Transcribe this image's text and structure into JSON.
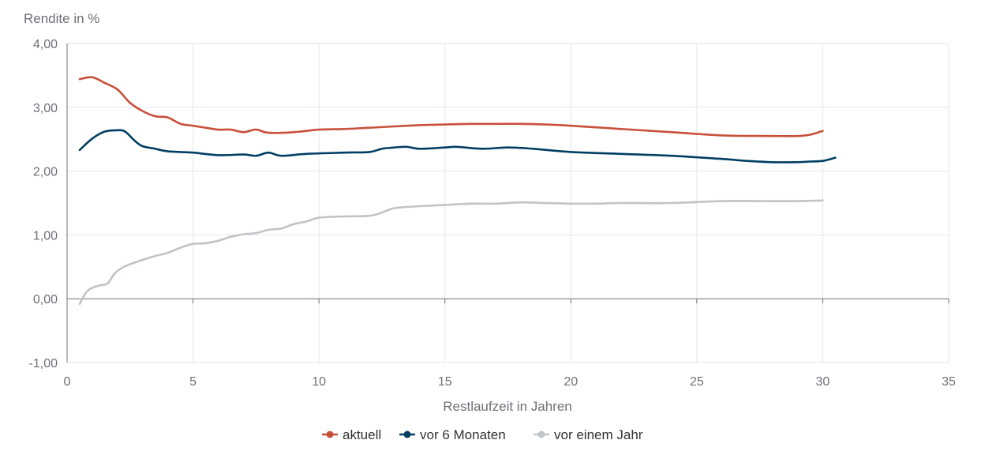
{
  "chart_data": {
    "type": "line",
    "ylabel": "Rendite in  %",
    "xlabel": "Restlaufzeit in Jahren",
    "xlim": [
      0,
      35
    ],
    "ylim": [
      -1,
      4
    ],
    "x_ticks": [
      "0",
      "5",
      "10",
      "15",
      "20",
      "25",
      "30",
      "35"
    ],
    "y_ticks": [
      "-1,00",
      "0,00",
      "1,00",
      "2,00",
      "3,00",
      "4,00"
    ],
    "grid": true,
    "legend_position": "bottom-center",
    "series": [
      {
        "name": "aktuell",
        "color": "#c8503a",
        "points": [
          [
            0.5,
            3.44
          ],
          [
            1.0,
            3.47
          ],
          [
            1.5,
            3.38
          ],
          [
            2.0,
            3.28
          ],
          [
            2.5,
            3.07
          ],
          [
            3.0,
            2.94
          ],
          [
            3.5,
            2.86
          ],
          [
            4.0,
            2.84
          ],
          [
            4.5,
            2.74
          ],
          [
            5.0,
            2.71
          ],
          [
            5.5,
            2.68
          ],
          [
            6.0,
            2.65
          ],
          [
            6.5,
            2.65
          ],
          [
            7.0,
            2.61
          ],
          [
            7.5,
            2.65
          ],
          [
            8.0,
            2.6
          ],
          [
            9.0,
            2.61
          ],
          [
            10.0,
            2.65
          ],
          [
            11.0,
            2.66
          ],
          [
            12.0,
            2.68
          ],
          [
            13.0,
            2.7
          ],
          [
            14.0,
            2.72
          ],
          [
            15.0,
            2.73
          ],
          [
            16.0,
            2.74
          ],
          [
            17.0,
            2.74
          ],
          [
            18.0,
            2.74
          ],
          [
            19.0,
            2.73
          ],
          [
            20.0,
            2.71
          ],
          [
            22.0,
            2.66
          ],
          [
            24.0,
            2.61
          ],
          [
            26.0,
            2.56
          ],
          [
            28.0,
            2.55
          ],
          [
            29.0,
            2.55
          ],
          [
            29.5,
            2.57
          ],
          [
            30.0,
            2.63
          ]
        ]
      },
      {
        "name": "vor 6 Monaten",
        "color": "#003f63",
        "points": [
          [
            0.5,
            2.33
          ],
          [
            1.0,
            2.51
          ],
          [
            1.5,
            2.62
          ],
          [
            2.0,
            2.64
          ],
          [
            2.3,
            2.62
          ],
          [
            2.7,
            2.47
          ],
          [
            3.0,
            2.39
          ],
          [
            3.5,
            2.35
          ],
          [
            4.0,
            2.31
          ],
          [
            5.0,
            2.29
          ],
          [
            6.0,
            2.25
          ],
          [
            7.0,
            2.26
          ],
          [
            7.5,
            2.24
          ],
          [
            8.0,
            2.29
          ],
          [
            8.5,
            2.24
          ],
          [
            9.5,
            2.27
          ],
          [
            11.0,
            2.29
          ],
          [
            12.0,
            2.3
          ],
          [
            12.5,
            2.35
          ],
          [
            13.0,
            2.37
          ],
          [
            13.5,
            2.38
          ],
          [
            14.0,
            2.35
          ],
          [
            15.0,
            2.37
          ],
          [
            15.5,
            2.38
          ],
          [
            16.5,
            2.35
          ],
          [
            17.5,
            2.37
          ],
          [
            18.5,
            2.35
          ],
          [
            20.0,
            2.3
          ],
          [
            22.0,
            2.27
          ],
          [
            24.0,
            2.24
          ],
          [
            26.0,
            2.19
          ],
          [
            27.0,
            2.16
          ],
          [
            28.0,
            2.14
          ],
          [
            29.0,
            2.14
          ],
          [
            29.5,
            2.15
          ],
          [
            30.0,
            2.16
          ],
          [
            30.5,
            2.21
          ]
        ]
      },
      {
        "name": "vor einem Jahr",
        "color": "#c0c4c8",
        "points": [
          [
            0.5,
            -0.08
          ],
          [
            0.8,
            0.12
          ],
          [
            1.2,
            0.2
          ],
          [
            1.6,
            0.24
          ],
          [
            1.9,
            0.4
          ],
          [
            2.3,
            0.51
          ],
          [
            3.0,
            0.61
          ],
          [
            3.5,
            0.67
          ],
          [
            4.0,
            0.72
          ],
          [
            4.5,
            0.8
          ],
          [
            5.0,
            0.86
          ],
          [
            5.5,
            0.87
          ],
          [
            6.0,
            0.91
          ],
          [
            6.5,
            0.97
          ],
          [
            7.0,
            1.01
          ],
          [
            7.5,
            1.03
          ],
          [
            8.0,
            1.08
          ],
          [
            8.5,
            1.1
          ],
          [
            9.0,
            1.17
          ],
          [
            9.5,
            1.21
          ],
          [
            10.0,
            1.27
          ],
          [
            11.0,
            1.29
          ],
          [
            12.0,
            1.3
          ],
          [
            12.5,
            1.35
          ],
          [
            13.0,
            1.42
          ],
          [
            14.0,
            1.45
          ],
          [
            15.0,
            1.47
          ],
          [
            16.0,
            1.49
          ],
          [
            17.0,
            1.49
          ],
          [
            18.0,
            1.51
          ],
          [
            19.0,
            1.5
          ],
          [
            20.0,
            1.49
          ],
          [
            21.0,
            1.49
          ],
          [
            22.0,
            1.5
          ],
          [
            24.0,
            1.5
          ],
          [
            26.0,
            1.53
          ],
          [
            28.0,
            1.53
          ],
          [
            29.0,
            1.53
          ],
          [
            30.0,
            1.54
          ]
        ]
      }
    ]
  }
}
